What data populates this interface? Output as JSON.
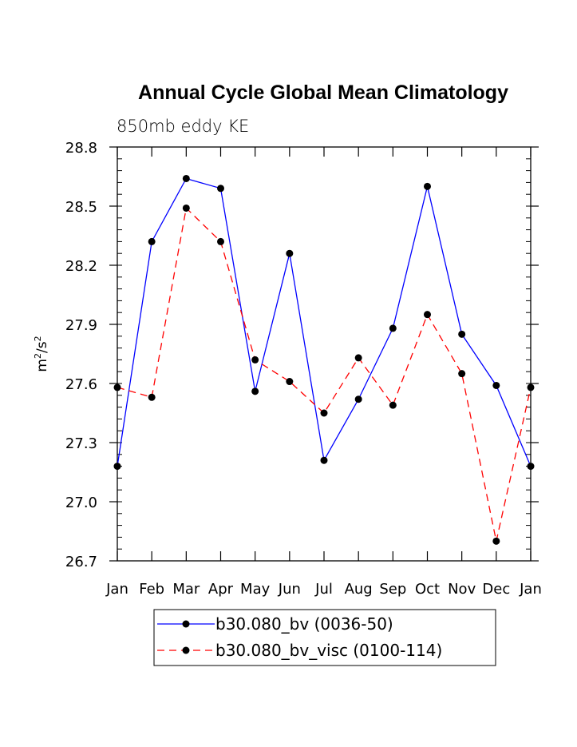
{
  "chart_data": {
    "type": "line",
    "title": "Annual Cycle Global Mean Climatology",
    "subtitle": "850mb eddy KE",
    "ylabel_base": "m",
    "ylabel_mid": "/s",
    "ylabel_exp": "2",
    "xlabel": "",
    "categories": [
      "Jan",
      "Feb",
      "Mar",
      "Apr",
      "May",
      "Jun",
      "Jul",
      "Aug",
      "Sep",
      "Oct",
      "Nov",
      "Dec",
      "Jan"
    ],
    "ylim": [
      26.7,
      28.8
    ],
    "yticks": [
      26.7,
      27.0,
      27.3,
      27.6,
      27.9,
      28.2,
      28.5,
      28.8
    ],
    "ytick_labels": [
      "26.7",
      "27.0",
      "27.3",
      "27.6",
      "27.9",
      "28.2",
      "28.5",
      "28.8"
    ],
    "grid": false,
    "legend_position": "bottom",
    "series": [
      {
        "name": "b30.080_bv (0036-50)",
        "color": "#0000ff",
        "dash": "solid",
        "values": [
          27.18,
          28.32,
          28.64,
          28.59,
          27.56,
          28.26,
          27.21,
          27.52,
          27.88,
          28.6,
          27.85,
          27.59,
          27.18
        ]
      },
      {
        "name": "b30.080_bv_visc (0100-114)",
        "color": "#ff0000",
        "dash": "dashed",
        "values": [
          27.58,
          27.53,
          28.49,
          28.32,
          27.72,
          27.61,
          27.45,
          27.73,
          27.49,
          27.95,
          27.65,
          26.8,
          27.58
        ]
      }
    ]
  }
}
